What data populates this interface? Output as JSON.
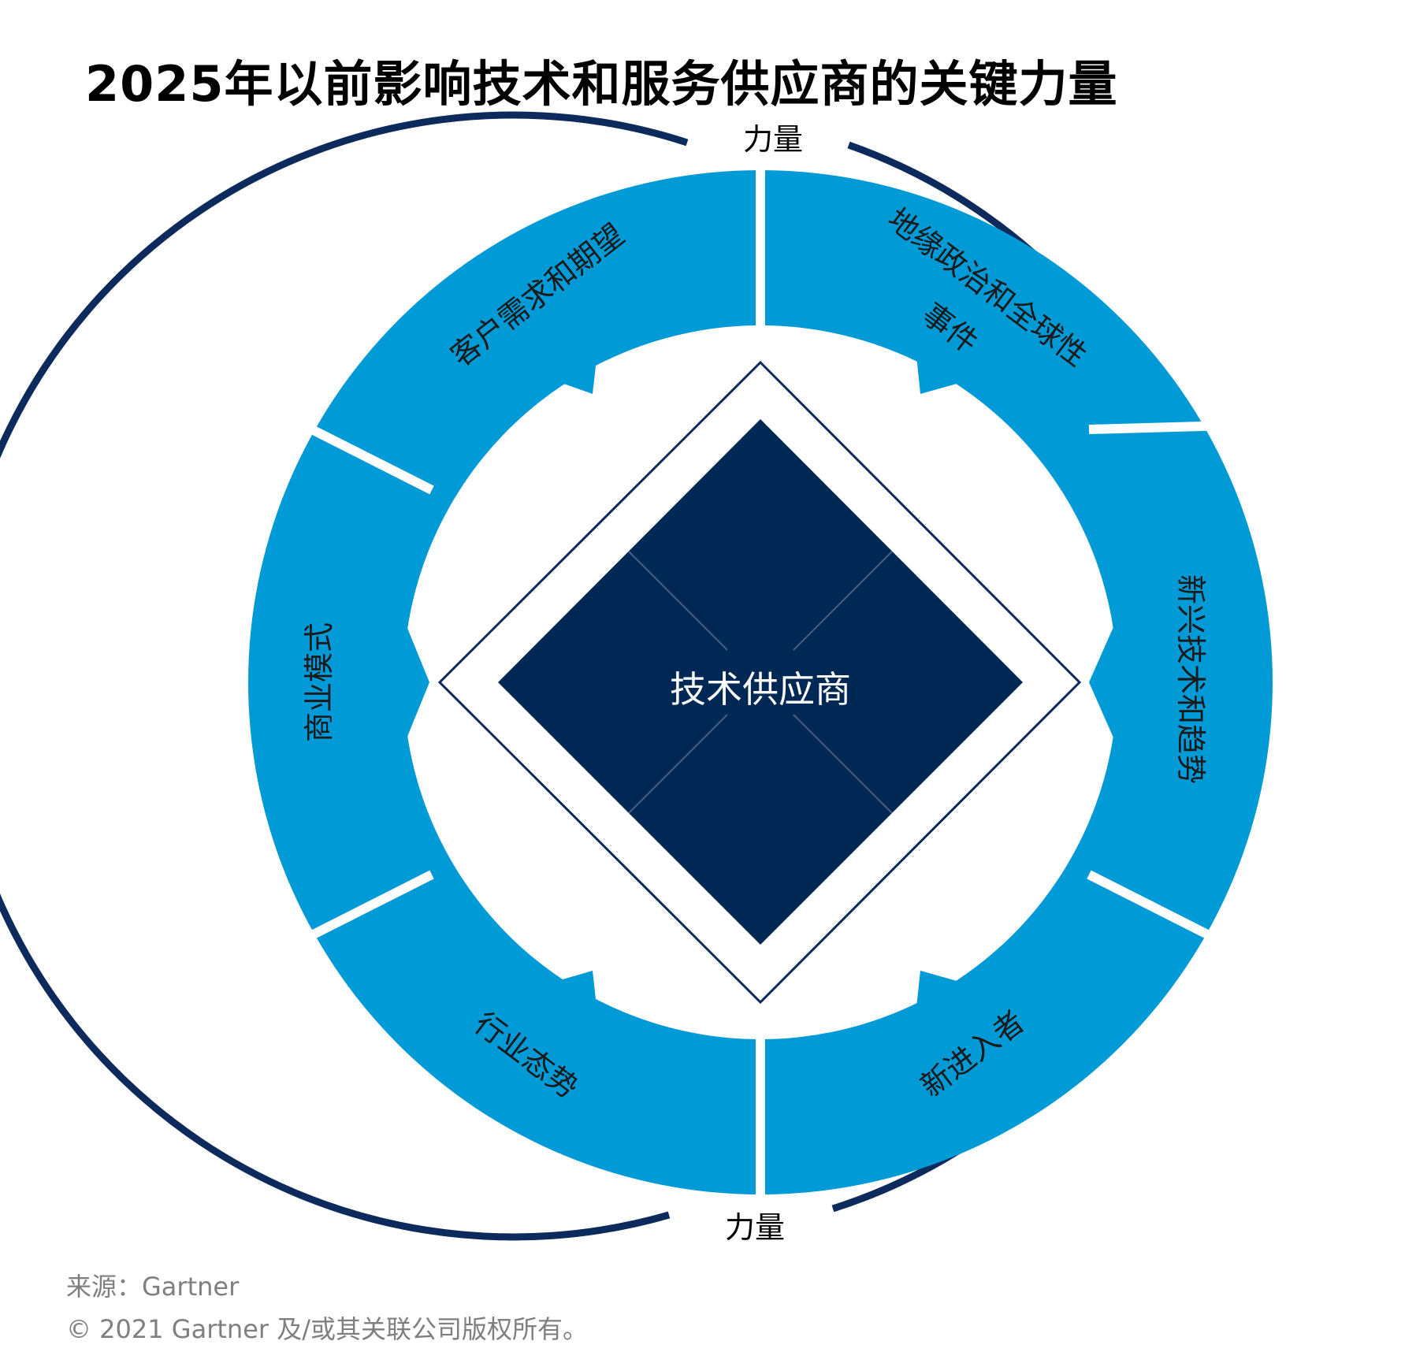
{
  "title": "2025年以前影响技术和服务供应商的关键力量",
  "center_label": "技术供应商",
  "force_label_top": "力量",
  "force_label_bottom": "力量",
  "segments": {
    "customer": "客户需求和期望",
    "geopolitics_line1": "地缘政治和全球性",
    "geopolitics_line2": "事件",
    "emerging_tech": "新兴技术和趋势",
    "new_entrants": "新进入者",
    "industry": "行业态势",
    "business_model": "商业模式"
  },
  "footer": {
    "source": "来源：Gartner",
    "copyright": "© 2021 Gartner 及/或其关联公司版权所有。"
  },
  "colors": {
    "segment_blue": "#009ad6",
    "navy": "#0c2a5b",
    "center_navy": "#002855",
    "footer_gray": "#7f7f7f"
  }
}
